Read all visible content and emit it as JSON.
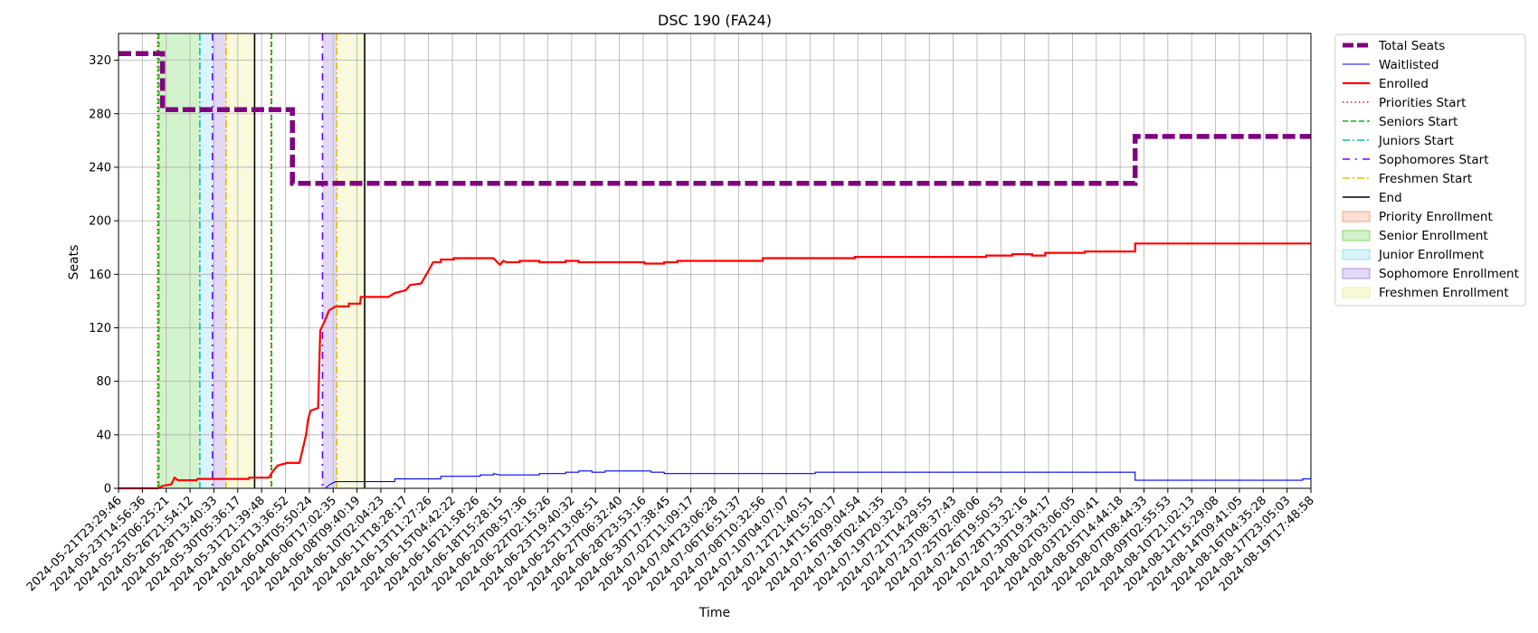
{
  "chart_data": {
    "type": "line",
    "title": "DSC 190 (FA24)",
    "xlabel": "Time",
    "ylabel": "Seats",
    "ylim": [
      0,
      340
    ],
    "yticks": [
      0,
      40,
      80,
      120,
      160,
      200,
      240,
      280,
      320
    ],
    "x_range": [
      "2024-05-21T23:29:46",
      "2024-08-20T17:00:00"
    ],
    "grid": true,
    "legend_placement": "outside right, top",
    "x_tick_labels": [
      "2024-05-21T23:29:46",
      "2024-05-23T14:56:36",
      "2024-05-25T06:25:21",
      "2024-05-26T21:54:12",
      "2024-05-28T13:40:33",
      "2024-05-30T05:36:17",
      "2024-05-31T21:39:48",
      "2024-06-02T13:36:52",
      "2024-06-04T05:50:24",
      "2024-06-06T17:02:35",
      "2024-06-08T09:40:19",
      "2024-06-10T02:04:23",
      "2024-06-11T18:28:17",
      "2024-06-13T11:27:26",
      "2024-06-15T04:42:22",
      "2024-06-16T21:58:26",
      "2024-06-18T15:28:15",
      "2024-06-20T08:57:36",
      "2024-06-22T02:15:26",
      "2024-06-23T19:40:32",
      "2024-06-25T13:08:51",
      "2024-06-27T06:32:40",
      "2024-06-28T23:53:16",
      "2024-06-30T17:38:45",
      "2024-07-02T11:09:17",
      "2024-07-04T23:06:28",
      "2024-07-06T16:51:37",
      "2024-07-08T10:32:56",
      "2024-07-10T04:07:07",
      "2024-07-12T21:40:51",
      "2024-07-14T15:20:17",
      "2024-07-16T09:04:54",
      "2024-07-18T02:41:35",
      "2024-07-19T20:32:03",
      "2024-07-21T14:29:55",
      "2024-07-23T08:37:43",
      "2024-07-25T02:08:06",
      "2024-07-26T19:50:53",
      "2024-07-28T13:32:16",
      "2024-07-30T19:34:17",
      "2024-08-02T03:06:05",
      "2024-08-03T21:00:41",
      "2024-08-05T14:44:18",
      "2024-08-07T08:44:33",
      "2024-08-09T02:55:53",
      "2024-08-10T21:02:13",
      "2024-08-12T15:29:08",
      "2024-08-14T09:41:05",
      "2024-08-16T04:35:28",
      "2024-08-17T23:05:03",
      "2024-08-19T17:48:58"
    ],
    "series": [
      {
        "name": "Total Seats",
        "color": "#800080",
        "style": "dashed-thick",
        "points": [
          [
            "2024-05-21T23:29:46",
            325
          ],
          [
            "2024-05-25T08:00:00",
            325
          ],
          [
            "2024-05-25T08:00:00",
            283
          ],
          [
            "2024-06-04T05:00:00",
            283
          ],
          [
            "2024-06-04T05:00:00",
            228
          ],
          [
            "2024-08-07T08:00:00",
            228
          ],
          [
            "2024-08-07T08:00:00",
            263
          ],
          [
            "2024-08-20T17:00:00",
            263
          ]
        ]
      },
      {
        "name": "Waitlisted",
        "color": "#0000ff",
        "style": "solid-thin",
        "points": [
          [
            "2024-05-21T23:29:46",
            0
          ],
          [
            "2024-06-06T17:00:00",
            0
          ],
          [
            "2024-06-07T02:00:00",
            3
          ],
          [
            "2024-06-07T12:00:00",
            5
          ],
          [
            "2024-06-12T00:00:00",
            5
          ],
          [
            "2024-06-12T00:00:00",
            7
          ],
          [
            "2024-06-15T12:00:00",
            7
          ],
          [
            "2024-06-15T12:00:00",
            9
          ],
          [
            "2024-06-18T12:00:00",
            9
          ],
          [
            "2024-06-18T12:00:00",
            10
          ],
          [
            "2024-06-19T12:00:00",
            10
          ],
          [
            "2024-06-19T12:00:00",
            11
          ],
          [
            "2024-06-20T00:00:00",
            10
          ],
          [
            "2024-06-23T00:00:00",
            10
          ],
          [
            "2024-06-23T00:00:00",
            11
          ],
          [
            "2024-06-25T00:00:00",
            11
          ],
          [
            "2024-06-25T00:00:00",
            12
          ],
          [
            "2024-06-26T00:00:00",
            12
          ],
          [
            "2024-06-26T00:00:00",
            13
          ],
          [
            "2024-06-27T00:00:00",
            13
          ],
          [
            "2024-06-27T00:00:00",
            12
          ],
          [
            "2024-06-28T00:00:00",
            12
          ],
          [
            "2024-06-28T00:00:00",
            13
          ],
          [
            "2024-07-01T12:00:00",
            13
          ],
          [
            "2024-07-01T12:00:00",
            12
          ],
          [
            "2024-07-02T12:00:00",
            12
          ],
          [
            "2024-07-02T12:00:00",
            11
          ],
          [
            "2024-07-14T00:00:00",
            11
          ],
          [
            "2024-07-14T00:00:00",
            12
          ],
          [
            "2024-08-07T08:00:00",
            12
          ],
          [
            "2024-08-07T08:00:00",
            6
          ],
          [
            "2024-08-20T02:00:00",
            6
          ],
          [
            "2024-08-20T02:00:00",
            7
          ],
          [
            "2024-08-20T17:00:00",
            7
          ]
        ]
      },
      {
        "name": "Enrolled",
        "color": "#ff0000",
        "style": "solid-thick",
        "points": [
          [
            "2024-05-21T23:29:46",
            0
          ],
          [
            "2024-05-24T23:00:00",
            0
          ],
          [
            "2024-05-25T10:00:00",
            2
          ],
          [
            "2024-05-26T00:00:00",
            3
          ],
          [
            "2024-05-26T06:00:00",
            8
          ],
          [
            "2024-05-26T12:00:00",
            6
          ],
          [
            "2024-05-27T22:00:00",
            6
          ],
          [
            "2024-05-28T00:00:00",
            7
          ],
          [
            "2024-05-31T21:00:00",
            7
          ],
          [
            "2024-05-31T22:00:00",
            8
          ],
          [
            "2024-06-02T10:00:00",
            8
          ],
          [
            "2024-06-02T16:00:00",
            12
          ],
          [
            "2024-06-03T02:00:00",
            17
          ],
          [
            "2024-06-03T20:00:00",
            19
          ],
          [
            "2024-06-04T18:00:00",
            19
          ],
          [
            "2024-06-05T06:00:00",
            40
          ],
          [
            "2024-06-05T10:00:00",
            52
          ],
          [
            "2024-06-05T14:00:00",
            58
          ],
          [
            "2024-06-06T04:00:00",
            60
          ],
          [
            "2024-06-06T08:00:00",
            118
          ],
          [
            "2024-06-06T16:00:00",
            125
          ],
          [
            "2024-06-07T00:00:00",
            133
          ],
          [
            "2024-06-07T12:00:00",
            136
          ],
          [
            "2024-06-08T12:00:00",
            136
          ],
          [
            "2024-06-08T12:00:00",
            138
          ],
          [
            "2024-06-09T09:00:00",
            138
          ],
          [
            "2024-06-09T10:00:00",
            143
          ],
          [
            "2024-06-11T12:00:00",
            143
          ],
          [
            "2024-06-12T00:00:00",
            146
          ],
          [
            "2024-06-12T20:00:00",
            148
          ],
          [
            "2024-06-13T04:00:00",
            152
          ],
          [
            "2024-06-14T00:00:00",
            153
          ],
          [
            "2024-06-14T14:00:00",
            163
          ],
          [
            "2024-06-14T22:00:00",
            169
          ],
          [
            "2024-06-15T12:00:00",
            169
          ],
          [
            "2024-06-15T12:00:00",
            171
          ],
          [
            "2024-06-16T12:00:00",
            171
          ],
          [
            "2024-06-16T12:00:00",
            172
          ],
          [
            "2024-06-19T12:00:00",
            172
          ],
          [
            "2024-06-20T00:00:00",
            167
          ],
          [
            "2024-06-20T06:00:00",
            170
          ],
          [
            "2024-06-20T12:00:00",
            169
          ],
          [
            "2024-06-21T12:00:00",
            169
          ],
          [
            "2024-06-21T12:00:00",
            170
          ],
          [
            "2024-06-23T00:00:00",
            170
          ],
          [
            "2024-06-23T00:00:00",
            169
          ],
          [
            "2024-06-25T00:00:00",
            169
          ],
          [
            "2024-06-25T00:00:00",
            170
          ],
          [
            "2024-06-26T00:00:00",
            170
          ],
          [
            "2024-06-26T00:00:00",
            169
          ],
          [
            "2024-07-01T00:00:00",
            169
          ],
          [
            "2024-07-01T00:00:00",
            168
          ],
          [
            "2024-07-02T12:00:00",
            168
          ],
          [
            "2024-07-02T12:00:00",
            169
          ],
          [
            "2024-07-03T12:00:00",
            169
          ],
          [
            "2024-07-03T12:00:00",
            170
          ],
          [
            "2024-07-10T00:00:00",
            170
          ],
          [
            "2024-07-10T00:00:00",
            172
          ],
          [
            "2024-07-17T00:00:00",
            172
          ],
          [
            "2024-07-17T00:00:00",
            173
          ],
          [
            "2024-07-27T00:00:00",
            173
          ],
          [
            "2024-07-27T00:00:00",
            174
          ],
          [
            "2024-07-29T00:00:00",
            174
          ],
          [
            "2024-07-29T00:00:00",
            175
          ],
          [
            "2024-07-30T12:00:00",
            175
          ],
          [
            "2024-07-30T12:00:00",
            174
          ],
          [
            "2024-07-31T12:00:00",
            174
          ],
          [
            "2024-07-31T12:00:00",
            176
          ],
          [
            "2024-08-03T12:00:00",
            176
          ],
          [
            "2024-08-03T12:00:00",
            177
          ],
          [
            "2024-08-07T08:00:00",
            177
          ],
          [
            "2024-08-07T08:00:00",
            183
          ],
          [
            "2024-08-20T17:00:00",
            183
          ]
        ]
      }
    ],
    "markers": [
      {
        "name": "Priorities Start",
        "color": "#ff0000",
        "style": "dotted",
        "times": [
          "2024-05-24T23:00:00",
          "2024-06-02T14:00:00"
        ]
      },
      {
        "name": "Seniors Start",
        "color": "#00bb00",
        "style": "dashed",
        "times": [
          "2024-05-25T01:00:00",
          "2024-06-02T15:00:00"
        ]
      },
      {
        "name": "Juniors Start",
        "color": "#00bfbf",
        "style": "dashdot",
        "times": [
          "2024-05-28T04:00:00"
        ]
      },
      {
        "name": "Sophomores Start",
        "color": "#6a00ff",
        "style": "loosedashdot",
        "times": [
          "2024-05-29T03:00:00",
          "2024-06-06T12:00:00"
        ]
      },
      {
        "name": "Freshmen Start",
        "color": "#e0c000",
        "style": "dashdot",
        "times": [
          "2024-05-30T04:00:00",
          "2024-06-07T14:00:00"
        ]
      },
      {
        "name": "End",
        "color": "#000000",
        "style": "solid",
        "times": [
          "2024-06-01T08:00:00",
          "2024-06-09T17:00:00"
        ]
      }
    ],
    "periods": [
      {
        "name": "Priority Enrollment",
        "color": "#f4a582",
        "ranges": [
          [
            "2024-05-24T23:00:00",
            "2024-05-25T01:00:00"
          ],
          [
            "2024-06-02T14:00:00",
            "2024-06-02T15:00:00"
          ]
        ]
      },
      {
        "name": "Senior Enrollment",
        "color": "#7fdc6b",
        "ranges": [
          [
            "2024-05-25T01:00:00",
            "2024-05-28T04:00:00"
          ]
        ]
      },
      {
        "name": "Junior Enrollment",
        "color": "#8fe3ef",
        "ranges": [
          [
            "2024-05-28T04:00:00",
            "2024-05-29T03:00:00"
          ]
        ]
      },
      {
        "name": "Sophomore Enrollment",
        "color": "#b38ee8",
        "ranges": [
          [
            "2024-05-29T03:00:00",
            "2024-05-30T04:00:00"
          ],
          [
            "2024-06-06T12:00:00",
            "2024-06-07T14:00:00"
          ]
        ]
      },
      {
        "name": "Freshmen Enrollment",
        "color": "#eeee99",
        "ranges": [
          [
            "2024-05-30T04:00:00",
            "2024-06-01T08:00:00"
          ],
          [
            "2024-06-07T14:00:00",
            "2024-06-09T17:00:00"
          ]
        ]
      }
    ],
    "legend": [
      {
        "label": "Total Seats",
        "kind": "line",
        "color": "#800080",
        "style": "dashed-thick"
      },
      {
        "label": "Waitlisted",
        "kind": "line",
        "color": "#0000ff",
        "style": "solid-thin"
      },
      {
        "label": "Enrolled",
        "kind": "line",
        "color": "#ff0000",
        "style": "solid-thick"
      },
      {
        "label": "Priorities Start",
        "kind": "line",
        "color": "#ff0000",
        "style": "dotted"
      },
      {
        "label": "Seniors Start",
        "kind": "line",
        "color": "#00bb00",
        "style": "dashed"
      },
      {
        "label": "Juniors Start",
        "kind": "line",
        "color": "#00bfbf",
        "style": "dashdot"
      },
      {
        "label": "Sophomores Start",
        "kind": "line",
        "color": "#6a00ff",
        "style": "loosedashdot"
      },
      {
        "label": "Freshmen Start",
        "kind": "line",
        "color": "#e0c000",
        "style": "dashdot"
      },
      {
        "label": "End",
        "kind": "line",
        "color": "#000000",
        "style": "solid"
      },
      {
        "label": "Priority Enrollment",
        "kind": "patch",
        "color": "#f4a582"
      },
      {
        "label": "Senior Enrollment",
        "kind": "patch",
        "color": "#7fdc6b"
      },
      {
        "label": "Junior Enrollment",
        "kind": "patch",
        "color": "#8fe3ef"
      },
      {
        "label": "Sophomore Enrollment",
        "kind": "patch",
        "color": "#b38ee8"
      },
      {
        "label": "Freshmen Enrollment",
        "kind": "patch",
        "color": "#eeee99"
      }
    ]
  }
}
